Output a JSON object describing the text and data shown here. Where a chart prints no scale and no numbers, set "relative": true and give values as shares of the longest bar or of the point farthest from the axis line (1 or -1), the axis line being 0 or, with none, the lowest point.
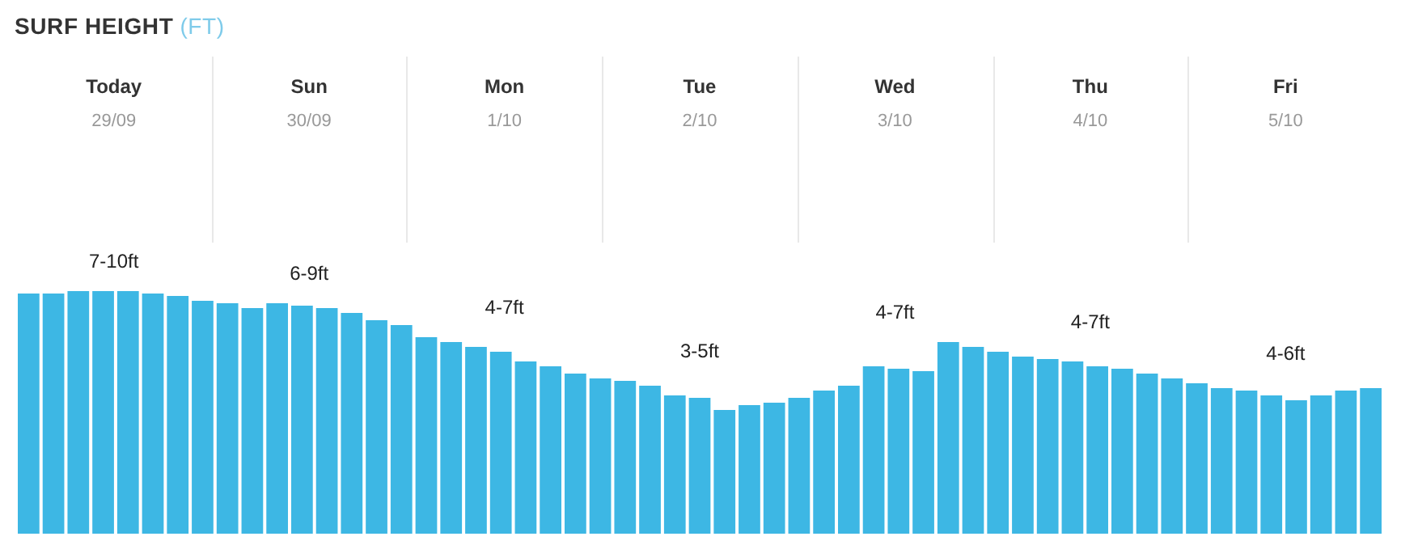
{
  "chart_data": {
    "type": "bar",
    "title": "SURF HEIGHT",
    "subtitle": "(FT)",
    "relative": true,
    "categories": [
      null,
      null,
      null,
      null,
      null,
      null,
      null,
      null,
      null,
      null,
      null,
      null,
      null,
      null,
      null,
      null,
      null,
      null,
      null,
      null,
      null,
      null,
      null,
      null,
      null,
      null,
      null,
      null,
      null,
      null,
      null,
      null,
      null,
      null,
      null,
      null,
      null,
      null,
      null,
      null,
      null,
      null,
      null,
      null,
      null,
      null,
      null,
      null,
      null,
      null,
      null,
      null,
      null,
      null,
      null
    ],
    "values": [
      0.99,
      0.99,
      1,
      1,
      1,
      0.99,
      0.98,
      0.96,
      0.95,
      0.93,
      0.95,
      0.94,
      0.93,
      0.91,
      0.88,
      0.86,
      0.81,
      0.79,
      0.77,
      0.75,
      0.71,
      0.69,
      0.66,
      0.64,
      0.63,
      0.61,
      0.57,
      0.56,
      0.51,
      0.53,
      0.54,
      0.56,
      0.59,
      0.61,
      0.69,
      0.68,
      0.67,
      0.79,
      0.77,
      0.75,
      0.73,
      0.72,
      0.71,
      0.69,
      0.68,
      0.66,
      0.64,
      0.62,
      0.6,
      0.59,
      0.57,
      0.55,
      0.57,
      0.59,
      0.6
    ],
    "color": "#3db7e4",
    "annotations": [
      "Today",
      "29/09",
      "7-10ft",
      "Sun",
      "30/09",
      "6-9ft",
      "Mon",
      "1/10",
      "4-7ft",
      "Tue",
      "2/10",
      "3-5ft",
      "Wed",
      "3/10",
      "4-7ft",
      "Thu",
      "4/10",
      "4-7ft",
      "Fri",
      "5/10",
      "4-6ft"
    ]
  }
}
